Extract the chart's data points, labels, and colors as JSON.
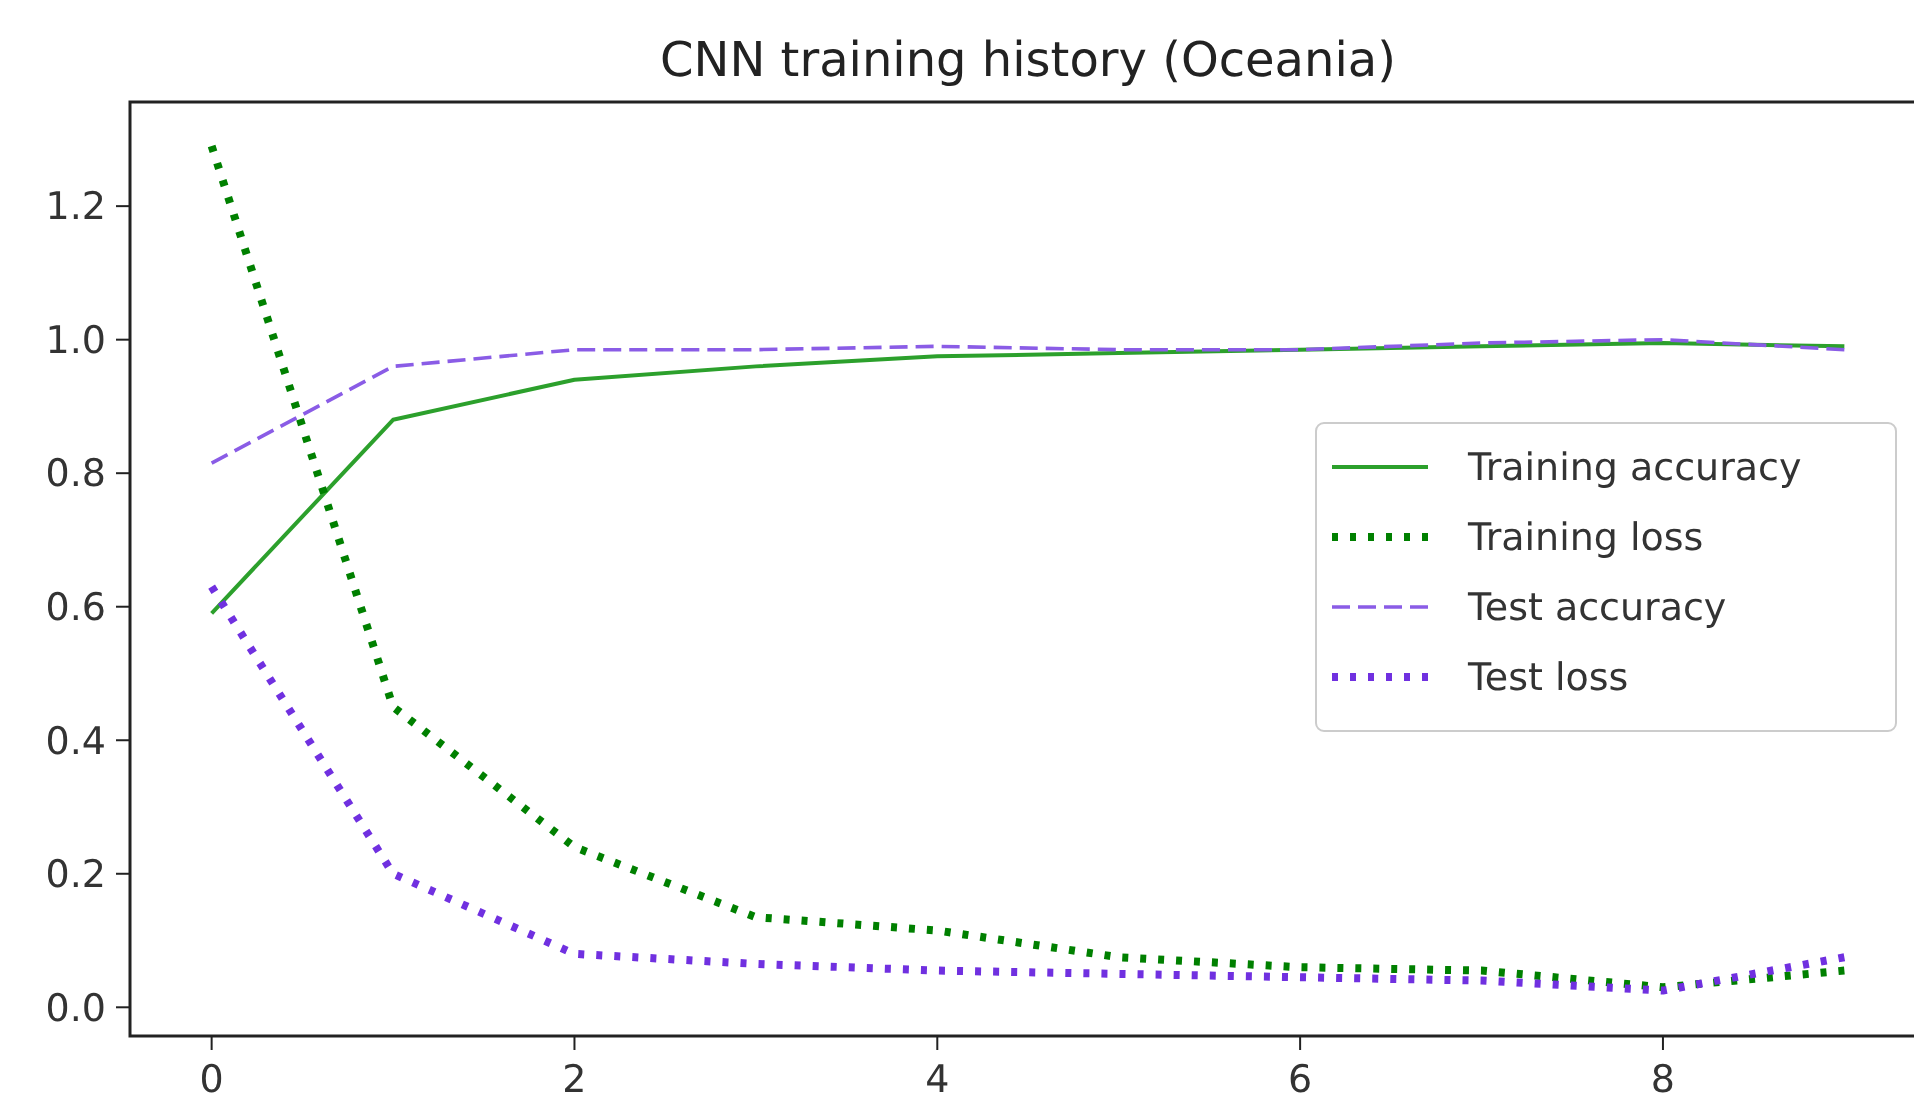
{
  "chart_data": {
    "type": "line",
    "title": "CNN training history (Oceania)",
    "x": [
      0,
      1,
      2,
      3,
      4,
      5,
      6,
      7,
      8,
      9
    ],
    "xlim": [
      -0.45,
      9.45
    ],
    "xticks": [
      0,
      2,
      4,
      6,
      8
    ],
    "ylim": [
      -0.043,
      1.356
    ],
    "yticks": [
      {
        "value": 0,
        "label": "0.0"
      },
      0.2,
      0.4,
      0.6,
      0.8,
      {
        "value": 1,
        "label": "1.0"
      },
      1.2
    ],
    "grid": false,
    "legend": "right",
    "series": [
      {
        "name": "Training accuracy",
        "color": "#2ca02c",
        "line_style": "solid",
        "values": [
          0.59,
          0.88,
          0.94,
          0.96,
          0.975,
          0.98,
          0.985,
          0.99,
          0.995,
          0.99
        ]
      },
      {
        "name": "Training loss",
        "color": "#008000",
        "line_style": "dotted",
        "values": [
          1.29,
          0.45,
          0.24,
          0.135,
          0.115,
          0.075,
          0.06,
          0.055,
          0.03,
          0.055
        ]
      },
      {
        "name": "Test accuracy",
        "color": "#8a5ce6",
        "line_style": "dashed",
        "values": [
          0.815,
          0.96,
          0.985,
          0.985,
          0.99,
          0.985,
          0.985,
          0.995,
          1.0,
          0.985
        ]
      },
      {
        "name": "Test loss",
        "color": "#7030e0",
        "line_style": "dotted",
        "values": [
          0.63,
          0.2,
          0.08,
          0.065,
          0.055,
          0.05,
          0.045,
          0.04,
          0.025,
          0.075
        ]
      }
    ]
  }
}
